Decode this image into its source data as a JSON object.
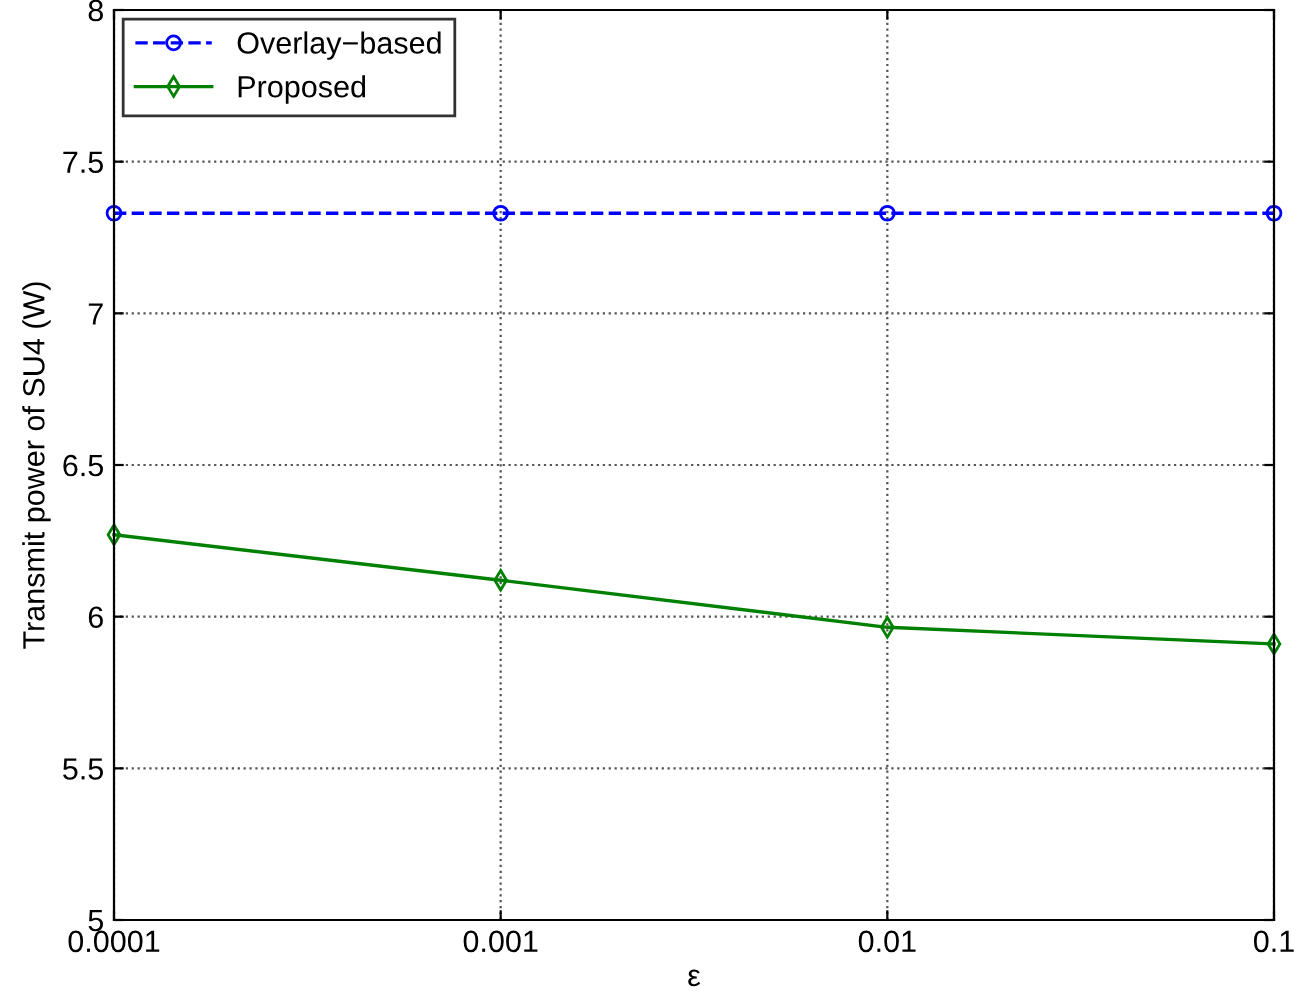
{
  "chart_data": {
    "type": "line",
    "xlabel": "ε",
    "ylabel": "Transmit power of SU4 (W)",
    "categories": [
      "0.0001",
      "0.001",
      "0.01",
      "0.1"
    ],
    "ylim": [
      5,
      8
    ],
    "yticks": [
      5,
      5.5,
      6,
      6.5,
      7,
      7.5,
      8
    ],
    "grid": true,
    "legend": "top left",
    "series": [
      {
        "name": "Overlay−based",
        "color": "#0000ff",
        "values": [
          7.33,
          7.33,
          7.33,
          7.33
        ],
        "marker": "circle",
        "line_style": "dashed"
      },
      {
        "name": "Proposed",
        "color": "#008000",
        "values": [
          6.27,
          6.12,
          5.965,
          5.91
        ],
        "marker": "diamond",
        "line_style": "solid"
      }
    ]
  }
}
